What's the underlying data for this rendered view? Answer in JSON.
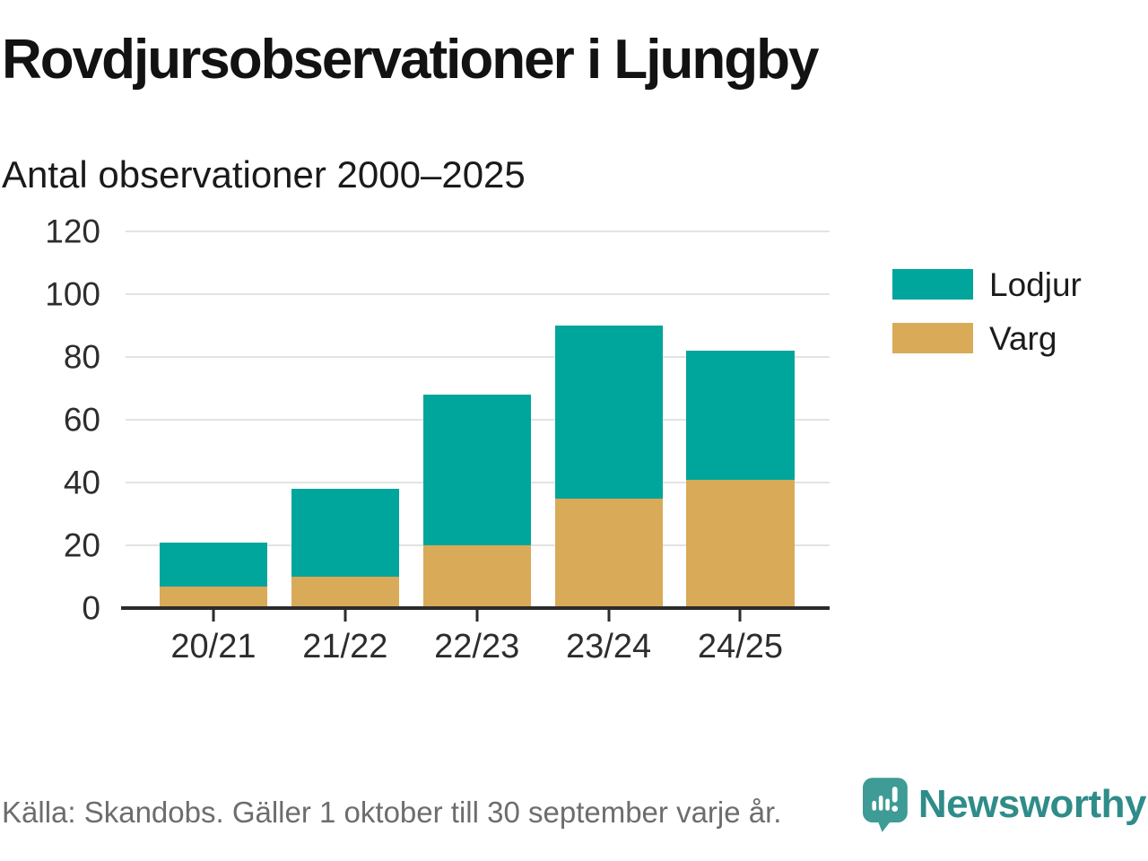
{
  "header": {
    "title": "Rovdjursobservationer i Ljungby",
    "subtitle": "Antal observationer 2000–2025"
  },
  "footer": {
    "source": "Källa: Skandobs. Gäller 1 oktober till 30 september varje år.",
    "brand": "Newsworthy",
    "brand_icon": "bar-chart-speech-bubble-icon",
    "brand_color": "#2f8c89",
    "brand_icon_color": "#3e9b96"
  },
  "chart_data": {
    "type": "bar",
    "stacked": true,
    "title": "Rovdjursobservationer i Ljungby",
    "subtitle": "Antal observationer 2000–2025",
    "categories": [
      "20/21",
      "21/22",
      "22/23",
      "23/24",
      "24/25"
    ],
    "series": [
      {
        "name": "Varg",
        "color": "#d9aa57",
        "values": [
          7,
          10,
          20,
          35,
          41
        ]
      },
      {
        "name": "Lodjur",
        "color": "#00a59b",
        "values": [
          14,
          28,
          48,
          55,
          41
        ]
      }
    ],
    "totals": [
      21,
      38,
      68,
      90,
      82
    ],
    "legend": [
      {
        "label": "Lodjur",
        "color": "#00a59b"
      },
      {
        "label": "Varg",
        "color": "#d9aa57"
      }
    ],
    "legend_position": "right",
    "xlabel": "",
    "ylabel": "",
    "ylim": [
      0,
      120
    ],
    "yticks": [
      0,
      20,
      40,
      60,
      80,
      100,
      120
    ],
    "grid": true,
    "gridline_color": "#e3e3e3",
    "axis_color": "#2b2b2b",
    "layout": {
      "first_center_pct": 12.48,
      "step_pct": 18.71,
      "bar_width_pct": 15.3
    }
  }
}
